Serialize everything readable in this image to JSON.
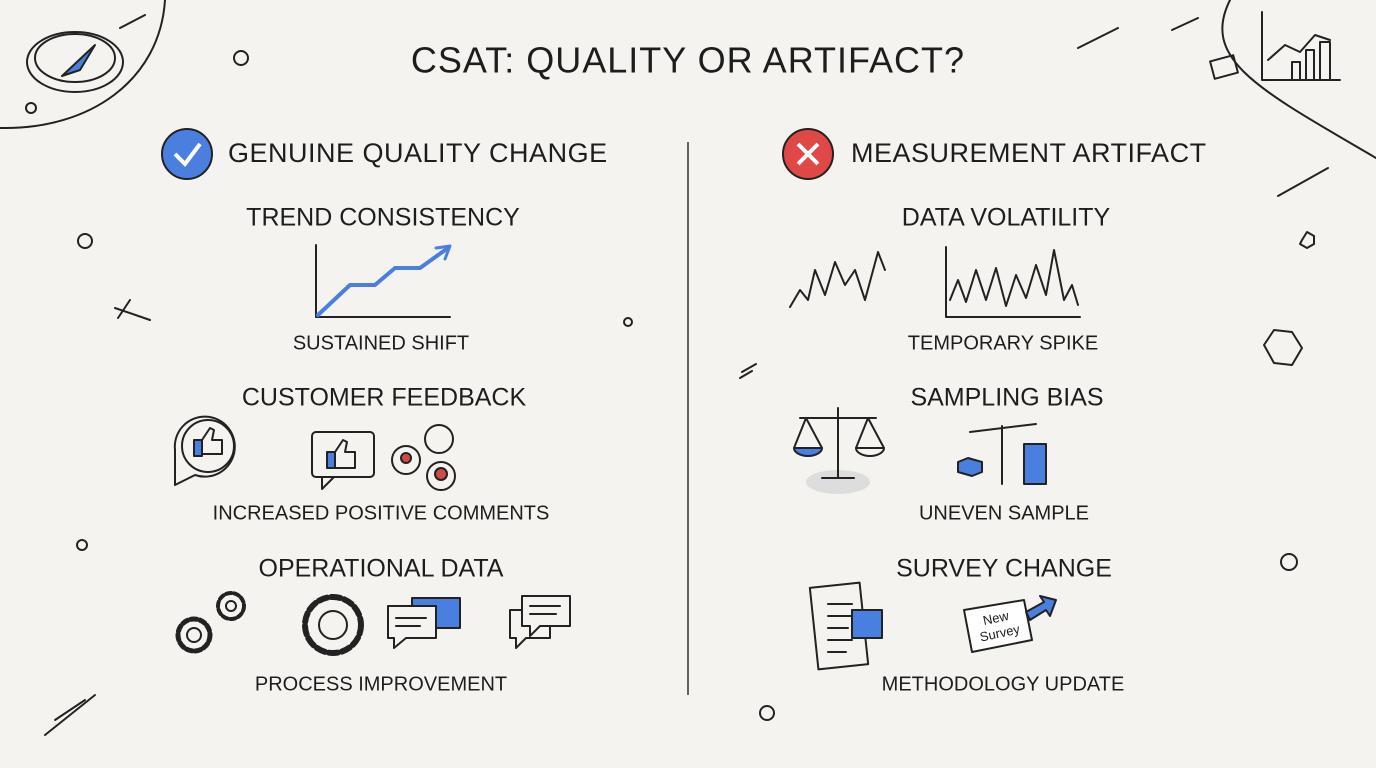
{
  "title": "CSAT: QUALITY OR ARTIFACT?",
  "columns": [
    {
      "heading": "GENUINE QUALITY CHANGE",
      "sections": [
        {
          "heading": "TREND CONSISTENCY",
          "caption": "SUSTAINED SHIFT"
        },
        {
          "heading": "CUSTOMER FEEDBACK",
          "caption": "INCREASED POSITIVE COMMENTS"
        },
        {
          "heading": "OPERATIONAL DATA",
          "caption": "PROCESS IMPROVEMENT"
        }
      ]
    },
    {
      "heading": "MEASUREMENT ARTIFACT",
      "sections": [
        {
          "heading": "DATA VOLATILITY",
          "caption": "TEMPORARY SPIKE"
        },
        {
          "heading": "SAMPLING BIAS",
          "caption": "UNEVEN SAMPLE"
        },
        {
          "heading": "SURVEY CHANGE",
          "caption": "METHODOLOGY UPDATE",
          "sign_lines": [
            "New",
            "Survey"
          ]
        }
      ]
    }
  ]
}
